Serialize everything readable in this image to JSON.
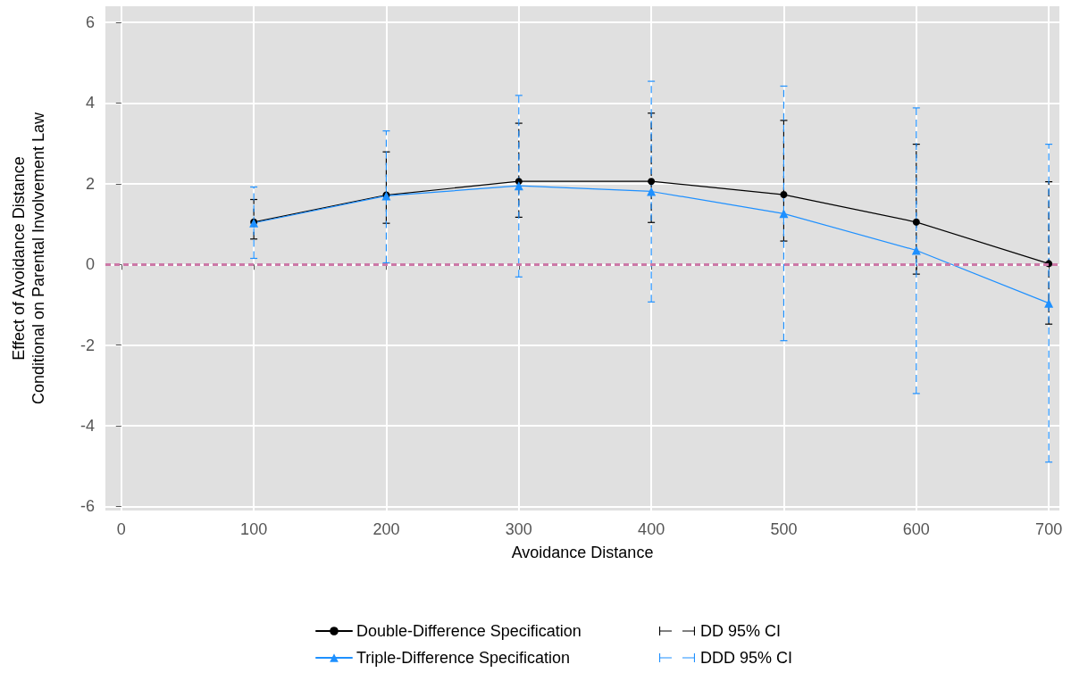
{
  "chart_data": {
    "type": "line",
    "xlabel": "Avoidance Distance",
    "ylabel": "Effect of Avoidance Distance\nConditional on Parental Involvement Law",
    "x": [
      100,
      200,
      300,
      400,
      500,
      600,
      700
    ],
    "xlim": [
      -12,
      708
    ],
    "xticks": [
      0,
      100,
      200,
      300,
      400,
      500,
      600,
      700
    ],
    "ylim": [
      -6.1,
      6.4
    ],
    "yticks": [
      -6,
      -4,
      -2,
      0,
      2,
      4,
      6
    ],
    "grid": true,
    "legend": "bottom",
    "annotations": [
      "DD 95% CI",
      "DDD 95% CI"
    ],
    "series": [
      {
        "name": "Double-Difference Specification",
        "color": "#000000",
        "marker": "circle",
        "line_style": "solid",
        "values": [
          1.05,
          1.72,
          2.06,
          2.06,
          1.73,
          1.05,
          0.02
        ],
        "errors": [
          [
            0.63,
            1.61
          ],
          [
            1.02,
            2.79
          ],
          [
            1.17,
            3.5
          ],
          [
            1.04,
            3.75
          ],
          [
            0.58,
            3.57
          ],
          [
            -0.24,
            2.98
          ],
          [
            -1.48,
            2.05
          ]
        ]
      },
      {
        "name": "Triple-Difference Specification",
        "color": "#1e90ff",
        "marker": "triangle",
        "line_style": "solid",
        "values": [
          1.03,
          1.7,
          1.95,
          1.81,
          1.26,
          0.35,
          -0.96
        ],
        "errors": [
          [
            0.15,
            1.92
          ],
          [
            0.04,
            3.31
          ],
          [
            -0.31,
            4.19
          ],
          [
            -0.93,
            4.54
          ],
          [
            -1.89,
            4.42
          ],
          [
            -3.2,
            3.88
          ],
          [
            -4.9,
            2.98
          ]
        ]
      }
    ],
    "ref_lines": [
      {
        "axis": "y",
        "value": 0,
        "label": null,
        "color": "#cc79a7",
        "line_style": "dashed"
      }
    ]
  }
}
